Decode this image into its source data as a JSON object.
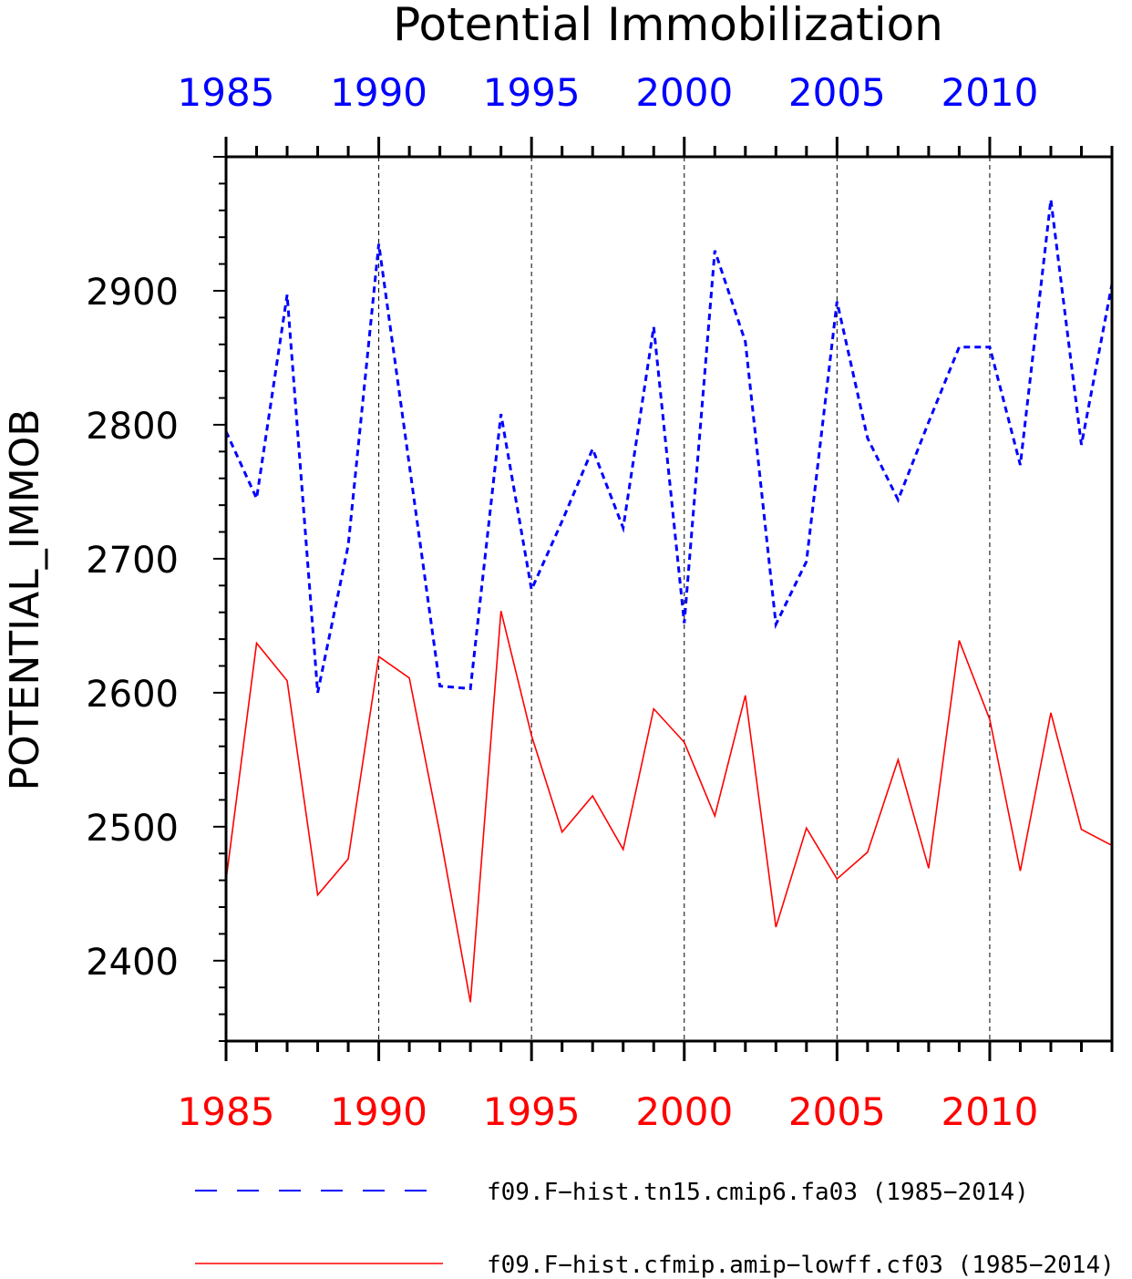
{
  "chart_data": {
    "type": "line",
    "title": "Potential Immobilization",
    "ylabel": "POTENTIAL_IMMOB",
    "xlim": [
      1985,
      2014
    ],
    "ylim": [
      2340,
      3000
    ],
    "x_ticks": [
      1985,
      1990,
      1995,
      2000,
      2005,
      2010
    ],
    "y_ticks": [
      2400,
      2500,
      2600,
      2700,
      2800,
      2900
    ],
    "x_tick_labels": [
      "1985",
      "1990",
      "1995",
      "2000",
      "2005",
      "2010"
    ],
    "y_tick_labels": [
      "2400",
      "2500",
      "2600",
      "2700",
      "2800",
      "2900"
    ],
    "grid": "vertical dashed at major x ticks",
    "legend_position": "bottom",
    "x": [
      1985,
      1986,
      1987,
      1988,
      1989,
      1990,
      1991,
      1992,
      1993,
      1994,
      1995,
      1996,
      1997,
      1998,
      1999,
      2000,
      2001,
      2002,
      2003,
      2004,
      2005,
      2006,
      2007,
      2008,
      2009,
      2010,
      2011,
      2012,
      2013,
      2014
    ],
    "series": [
      {
        "name": "f09.F−hist.tn15.cmip6.fa03 (1985−2014)",
        "color": "#0000ff",
        "style": "dashed",
        "values": [
          2795,
          2745,
          2897,
          2600,
          2710,
          2935,
          2770,
          2605,
          2603,
          2808,
          2677,
          2728,
          2782,
          2723,
          2873,
          2652,
          2930,
          2862,
          2651,
          2698,
          2892,
          2790,
          2744,
          2802,
          2858,
          2858,
          2770,
          2968,
          2785,
          2905
        ]
      },
      {
        "name": "f09.F−hist.cfmip.amip−lowff.cf03 (1985−2014)",
        "color": "#ff0000",
        "style": "solid",
        "values": [
          2460,
          2637,
          2609,
          2449,
          2476,
          2627,
          2611,
          2495,
          2369,
          2661,
          2568,
          2496,
          2523,
          2483,
          2588,
          2563,
          2508,
          2598,
          2425,
          2499,
          2461,
          2481,
          2550,
          2469,
          2639,
          2580,
          2467,
          2585,
          2498,
          2486
        ]
      }
    ]
  }
}
